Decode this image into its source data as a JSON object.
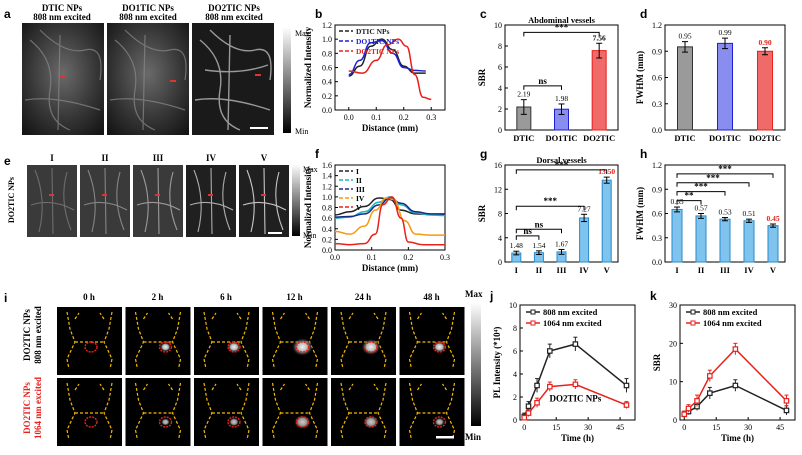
{
  "panels": {
    "a": {
      "label": "a",
      "titles": [
        [
          "DTIC NPs",
          "808 nm excited"
        ],
        [
          "DO1TIC NPs",
          "808 nm excited"
        ],
        [
          "DO2TIC NPs",
          "808 nm excited"
        ]
      ],
      "colorbar": {
        "max": "Max",
        "min": "Min"
      }
    },
    "e": {
      "label": "e",
      "side_label": "DO2TIC NPs",
      "titles": [
        "I",
        "II",
        "III",
        "IV",
        "V"
      ],
      "colorbar": {
        "max": "Max",
        "min": "Min"
      }
    },
    "i": {
      "label": "i",
      "times": [
        "0 h",
        "2 h",
        "6 h",
        "12 h",
        "24 h",
        "48 h"
      ],
      "row1": [
        "DO2TIC NPs",
        "808 nm excited"
      ],
      "row2": [
        "DO2TIC NPs",
        "1064 nm excited"
      ],
      "colorbar": {
        "max": "Max",
        "min": "Min"
      }
    },
    "b": {
      "label": "b"
    },
    "c": {
      "label": "c"
    },
    "d": {
      "label": "d"
    },
    "f": {
      "label": "f"
    },
    "g": {
      "label": "g"
    },
    "h": {
      "label": "h"
    },
    "j": {
      "label": "j"
    },
    "k": {
      "label": "k"
    }
  },
  "colors": {
    "black": "#222222",
    "blue": "#1f1fd6",
    "red": "#e8211d",
    "cyan": "#15b7c5",
    "navy": "#1b2a8a",
    "orange": "#f59a12",
    "lightblue": "#7ec4ee",
    "gray": "#9a9a9a",
    "rose": "#f06a6a",
    "dashyellow": "#f5b800"
  },
  "chart_data": [
    {
      "id": "b",
      "type": "line",
      "xlabel": "Distance (mm)",
      "ylabel": "Normalized Intensity",
      "xlim": [
        -0.05,
        0.35
      ],
      "ylim": [
        0,
        1.2
      ],
      "xticks": [
        0.0,
        0.1,
        0.2,
        0.3
      ],
      "yticks": [
        0.0,
        0.2,
        0.4,
        0.6,
        0.8,
        1.0,
        1.2
      ],
      "legend_position": "top-left",
      "series": [
        {
          "name": "DTIC NPs",
          "color": "#222222",
          "x": [
            0.0,
            0.04,
            0.08,
            0.12,
            0.16,
            0.2,
            0.24,
            0.28
          ],
          "y": [
            0.48,
            0.62,
            0.9,
            1.0,
            0.85,
            0.62,
            0.52,
            0.52
          ]
        },
        {
          "name": "DO1TIC NPs",
          "color": "#1f1fd6",
          "x": [
            0.0,
            0.04,
            0.08,
            0.12,
            0.16,
            0.2,
            0.24,
            0.28
          ],
          "y": [
            0.5,
            0.7,
            0.95,
            0.98,
            0.8,
            0.6,
            0.56,
            0.55
          ]
        },
        {
          "name": "DO2TIC NPs",
          "color": "#e8211d",
          "x": [
            0.0,
            0.05,
            0.1,
            0.14,
            0.18,
            0.21,
            0.24,
            0.27,
            0.3
          ],
          "y": [
            0.55,
            0.52,
            0.7,
            0.92,
            1.0,
            0.9,
            0.5,
            0.18,
            0.15
          ]
        }
      ]
    },
    {
      "id": "c",
      "type": "bar",
      "title": "Abdominal vessels",
      "ylabel": "SBR",
      "categories": [
        "DTIC",
        "DO1TIC",
        "DO2TIC"
      ],
      "values": [
        2.19,
        1.98,
        7.56
      ],
      "value_labels": [
        "2.19",
        "1.98",
        "7.56"
      ],
      "errors": [
        0.7,
        0.5,
        0.7
      ],
      "ylim": [
        0,
        10
      ],
      "yticks": [
        0,
        2,
        4,
        6,
        8,
        10
      ],
      "annotations": [
        "ns",
        "***"
      ]
    },
    {
      "id": "d",
      "type": "bar",
      "ylabel": "FWHM (mm)",
      "categories": [
        "DTIC",
        "DO1TIC",
        "DO2TIC"
      ],
      "values": [
        0.95,
        0.99,
        0.9
      ],
      "value_labels": [
        "0.95",
        "0.99",
        "0.90"
      ],
      "errors": [
        0.06,
        0.06,
        0.04
      ],
      "ylim": [
        0,
        1.2
      ],
      "yticks": [
        0.0,
        0.3,
        0.6,
        0.9,
        1.2
      ]
    },
    {
      "id": "f",
      "type": "line",
      "xlabel": "Distance (mm)",
      "ylabel": "Normalized Intensity",
      "xlim": [
        0,
        0.3
      ],
      "ylim": [
        0,
        1.6
      ],
      "xticks": [
        0.0,
        0.1,
        0.2,
        0.3
      ],
      "yticks": [
        0.0,
        0.2,
        0.4,
        0.6,
        0.8,
        1.0,
        1.2,
        1.4,
        1.6
      ],
      "legend_position": "top-left",
      "series": [
        {
          "name": "I",
          "color": "#222222",
          "x": [
            0.0,
            0.04,
            0.08,
            0.12,
            0.15,
            0.18,
            0.22,
            0.26,
            0.3
          ],
          "y": [
            0.66,
            0.72,
            0.82,
            0.98,
            0.95,
            0.75,
            0.68,
            0.67,
            0.66
          ]
        },
        {
          "name": "II",
          "color": "#15b7c5",
          "x": [
            0.0,
            0.04,
            0.08,
            0.12,
            0.15,
            0.18,
            0.22,
            0.26,
            0.3
          ],
          "y": [
            0.6,
            0.62,
            0.72,
            0.9,
            1.0,
            0.85,
            0.7,
            0.66,
            0.65
          ]
        },
        {
          "name": "III",
          "color": "#1b2a8a",
          "x": [
            0.0,
            0.04,
            0.08,
            0.12,
            0.15,
            0.18,
            0.22,
            0.26,
            0.3
          ],
          "y": [
            0.62,
            0.63,
            0.68,
            0.85,
            0.98,
            0.88,
            0.72,
            0.68,
            0.68
          ]
        },
        {
          "name": "IV",
          "color": "#f59a12",
          "x": [
            0.0,
            0.04,
            0.08,
            0.11,
            0.14,
            0.16,
            0.19,
            0.22,
            0.26,
            0.3
          ],
          "y": [
            0.35,
            0.3,
            0.45,
            0.75,
            0.98,
            0.95,
            0.55,
            0.3,
            0.28,
            0.28
          ]
        },
        {
          "name": "V",
          "color": "#e8211d",
          "x": [
            0.0,
            0.04,
            0.08,
            0.11,
            0.13,
            0.155,
            0.18,
            0.2,
            0.24,
            0.3
          ],
          "y": [
            0.12,
            0.1,
            0.12,
            0.3,
            0.85,
            1.0,
            0.6,
            0.15,
            0.1,
            0.1
          ]
        }
      ]
    },
    {
      "id": "g",
      "type": "bar",
      "title": "Dorsal vessels",
      "ylabel": "SBR",
      "categories": [
        "I",
        "II",
        "III",
        "IV",
        "V"
      ],
      "values": [
        1.48,
        1.54,
        1.67,
        7.27,
        13.5
      ],
      "value_labels": [
        "1.48",
        "1.54",
        "1.67",
        "7.27",
        "13.50"
      ],
      "errors": [
        0.3,
        0.3,
        0.4,
        0.6,
        0.5
      ],
      "ylim": [
        0,
        16
      ],
      "yticks": [
        0,
        4,
        8,
        12,
        16
      ],
      "annotations": [
        "ns",
        "ns",
        "***",
        "***"
      ]
    },
    {
      "id": "h",
      "type": "bar",
      "ylabel": "FWHM (mm)",
      "categories": [
        "I",
        "II",
        "III",
        "IV",
        "V"
      ],
      "values": [
        0.65,
        0.57,
        0.53,
        0.51,
        0.45
      ],
      "value_labels": [
        "0.65",
        "0.57",
        "0.53",
        "0.51",
        "0.45"
      ],
      "errors": [
        0.03,
        0.03,
        0.02,
        0.02,
        0.02
      ],
      "ylim": [
        0,
        1.2
      ],
      "yticks": [
        0.0,
        0.3,
        0.6,
        0.9,
        1.2
      ],
      "annotations": [
        "**",
        "***",
        "***",
        "***"
      ]
    },
    {
      "id": "j",
      "type": "line",
      "xlabel": "Time (h)",
      "ylabel": "PL Intensity (*10⁴)",
      "xlim": [
        -2,
        52
      ],
      "ylim": [
        0,
        10
      ],
      "xticks": [
        0,
        15,
        30,
        45
      ],
      "yticks": [
        0,
        2,
        4,
        6,
        8,
        10
      ],
      "legend_position": "top-left",
      "annotation": "DO2TIC NPs",
      "series": [
        {
          "name": "808 nm excited",
          "color": "#222222",
          "x": [
            0,
            2,
            6,
            12,
            24,
            48
          ],
          "y": [
            0.3,
            1.2,
            3.0,
            6.0,
            6.6,
            3.0
          ]
        },
        {
          "name": "1064 nm excited",
          "color": "#e8211d",
          "x": [
            0,
            2,
            6,
            12,
            24,
            48
          ],
          "y": [
            0.2,
            0.6,
            1.5,
            2.9,
            3.1,
            1.3
          ]
        }
      ],
      "errors": [
        [
          0.3,
          0.4,
          0.6,
          0.6,
          0.6,
          0.6
        ],
        [
          0.2,
          0.3,
          0.4,
          0.4,
          0.4,
          0.3
        ]
      ]
    },
    {
      "id": "k",
      "type": "line",
      "xlabel": "Time (h)",
      "ylabel": "SBR",
      "xlim": [
        -2,
        52
      ],
      "ylim": [
        0,
        30
      ],
      "xticks": [
        0,
        15,
        30,
        45
      ],
      "yticks": [
        0,
        10,
        20,
        30
      ],
      "legend_position": "top-left",
      "series": [
        {
          "name": "808 nm excited",
          "color": "#222222",
          "x": [
            0,
            2,
            6,
            12,
            24,
            48
          ],
          "y": [
            1.5,
            2.2,
            3.5,
            7.0,
            9.0,
            2.5
          ]
        },
        {
          "name": "1064 nm excited",
          "color": "#e8211d",
          "x": [
            0,
            2,
            6,
            12,
            24,
            48
          ],
          "y": [
            1.5,
            3.0,
            5.0,
            11.5,
            18.5,
            5.0
          ]
        }
      ],
      "errors": [
        [
          0.8,
          0.8,
          1.0,
          1.5,
          1.5,
          1.2
        ],
        [
          0.8,
          1.0,
          1.5,
          1.5,
          1.5,
          1.5
        ]
      ]
    }
  ]
}
